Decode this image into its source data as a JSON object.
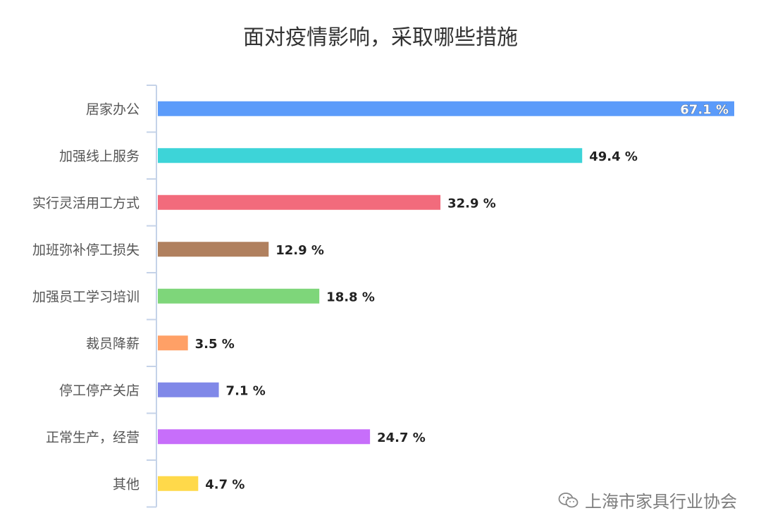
{
  "chart_data": {
    "type": "bar",
    "orientation": "horizontal",
    "title": "面对疫情影响，采取哪些措施",
    "categories": [
      "居家办公",
      "加强线上服务",
      "实行灵活用工方式",
      "加班弥补停工损失",
      "加强员工学习培训",
      "裁员降薪",
      "停工停产关店",
      "正常生产，经营",
      "其他"
    ],
    "values": [
      67.1,
      49.4,
      32.9,
      12.9,
      18.8,
      3.5,
      7.1,
      24.7,
      4.7
    ],
    "value_suffix": " %",
    "bar_colors": [
      "#5b9bfa",
      "#3dd4d8",
      "#f26b7c",
      "#b0805e",
      "#7ed67a",
      "#ffa066",
      "#8088e8",
      "#c76efa",
      "#ffd94a"
    ],
    "xlim": [
      0,
      67.1
    ],
    "axis_color": "#c5d3e8",
    "grid": false,
    "legend": "none"
  },
  "watermark": {
    "icon": "wechat-icon",
    "text": "上海市家具行业协会"
  }
}
